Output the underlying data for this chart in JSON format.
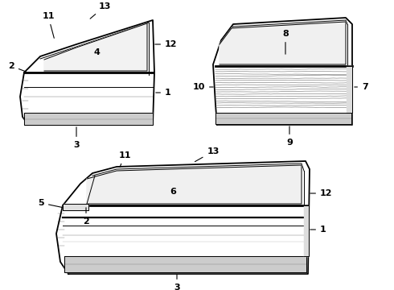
{
  "bg_color": "#ffffff",
  "line_color": "#000000",
  "lw_main": 1.3,
  "lw_thin": 0.7,
  "lw_thick": 2.0,
  "label_fontsize": 8.0
}
